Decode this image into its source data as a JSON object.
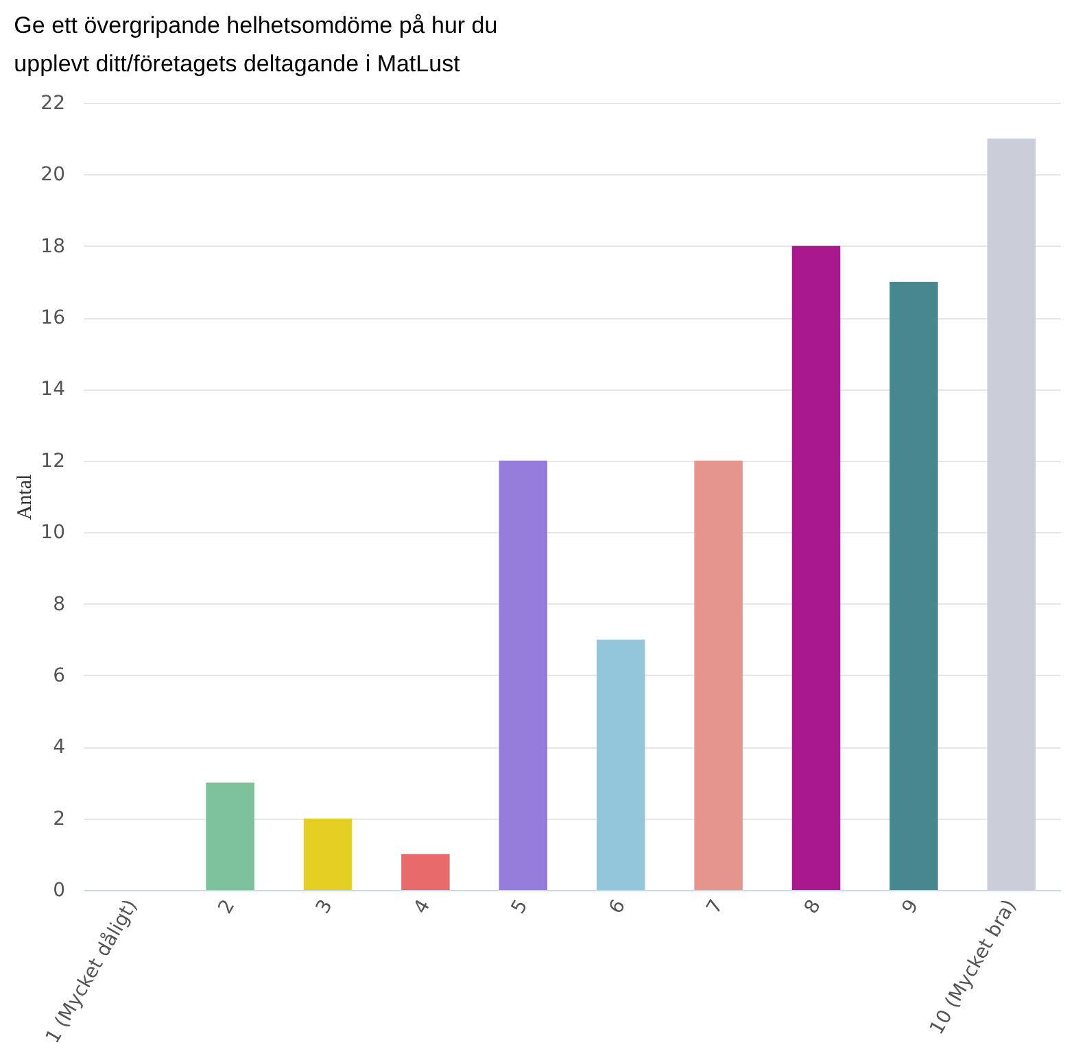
{
  "chart_data": {
    "type": "bar",
    "title": "Ge ett övergripande helhetsomdöme på hur du upplevt ditt/företagets deltagande i MatLust",
    "ylabel": "Antal",
    "categories": [
      "1 (Mycket dåligt)",
      "2",
      "3",
      "4",
      "5",
      "6",
      "7",
      "8",
      "9",
      "10 (Mycket bra)"
    ],
    "values": [
      0,
      3,
      2,
      1,
      12,
      7,
      12,
      18,
      17,
      21
    ],
    "colors": [
      "#7cb5ec",
      "#7dc19a",
      "#e5cf22",
      "#e86a6a",
      "#977ddb",
      "#93c6da",
      "#e5958c",
      "#aa1890",
      "#478890",
      "#c9ced8"
    ],
    "ylim": [
      0,
      22
    ],
    "yticks": [
      0,
      2,
      4,
      6,
      8,
      10,
      12,
      14,
      16,
      18,
      20,
      22
    ],
    "grid": "y",
    "legend": false
  }
}
